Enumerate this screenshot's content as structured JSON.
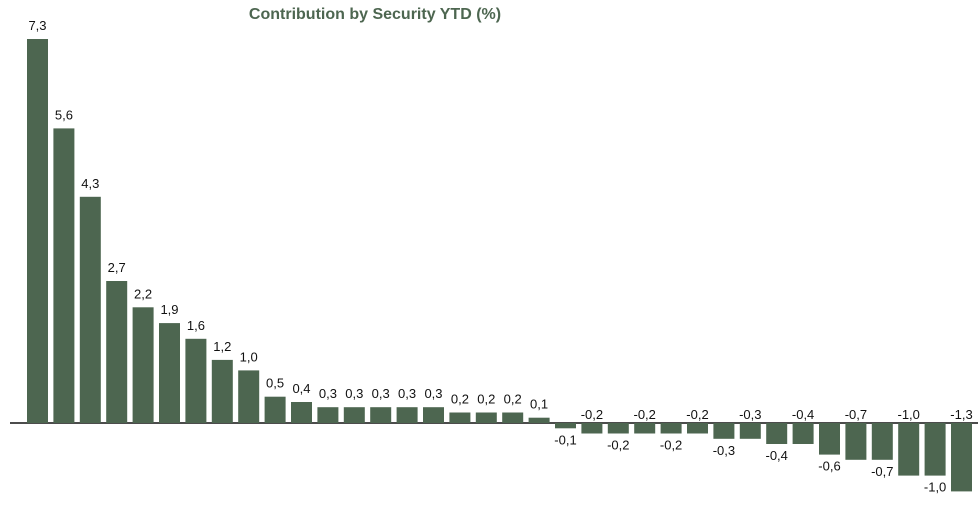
{
  "chart_data": {
    "type": "bar",
    "title": "Contribution by Security YTD (%)",
    "xlabel": "",
    "ylabel": "",
    "grid": false,
    "legend": "none",
    "values": [
      7.3,
      5.6,
      4.3,
      2.7,
      2.2,
      1.9,
      1.6,
      1.2,
      1.0,
      0.5,
      0.4,
      0.3,
      0.3,
      0.3,
      0.3,
      0.3,
      0.2,
      0.2,
      0.2,
      0.1,
      -0.1,
      -0.2,
      -0.2,
      -0.2,
      -0.2,
      -0.2,
      -0.3,
      -0.3,
      -0.4,
      -0.4,
      -0.6,
      -0.7,
      -0.7,
      -1.0,
      -1.0,
      -1.3
    ],
    "labels": [
      "7,3",
      "5,6",
      "4,3",
      "2,7",
      "2,2",
      "1,9",
      "1,6",
      "1,2",
      "1,0",
      "0,5",
      "0,4",
      "0,3",
      "0,3",
      "0,3",
      "0,3",
      "0,3",
      "0,2",
      "0,2",
      "0,2",
      "0,1",
      "-0,1",
      "-0,2",
      "-0,2",
      "-0,2",
      "-0,2",
      "-0,2",
      "-0,3",
      "-0,3",
      "-0,4",
      "-0,4",
      "-0,6",
      "-0,7",
      "-0,7",
      "-1,0",
      "-1,0",
      "-1,3"
    ],
    "label_below": [
      false,
      false,
      false,
      false,
      false,
      false,
      false,
      false,
      false,
      false,
      false,
      false,
      false,
      false,
      false,
      false,
      false,
      false,
      false,
      false,
      true,
      false,
      true,
      false,
      true,
      false,
      true,
      false,
      true,
      false,
      true,
      false,
      true,
      false,
      true,
      false
    ],
    "bar_color": "#4d6650",
    "title_color": "#4d6650",
    "axis_color": "#111111"
  }
}
